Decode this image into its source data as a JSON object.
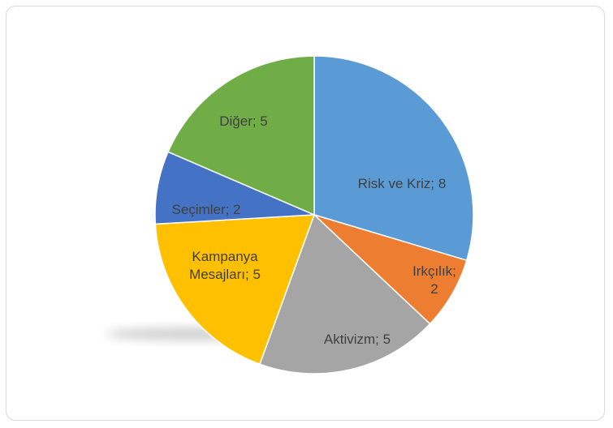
{
  "chart_data": {
    "type": "pie",
    "title": "",
    "legend": "none",
    "slices": [
      {
        "name": "Risk ve Kriz",
        "value": 8,
        "color": "#5b9bd5",
        "label_lines": [
          "Risk ve Kriz; 8"
        ]
      },
      {
        "name": "Irkçılık",
        "value": 2,
        "color": "#ed7d31",
        "label_lines": [
          "Irkçılık;",
          "2"
        ]
      },
      {
        "name": "Aktivizm",
        "value": 5,
        "color": "#a5a5a5",
        "label_lines": [
          "Aktivizm; 5"
        ]
      },
      {
        "name": "Kampanya Mesajları",
        "value": 5,
        "color": "#ffc000",
        "label_lines": [
          "Kampanya",
          "Mesajları; 5"
        ]
      },
      {
        "name": "Seçimler",
        "value": 2,
        "color": "#4472c4",
        "label_lines": [
          "Seçimler; 2"
        ]
      },
      {
        "name": "Diğer",
        "value": 5,
        "color": "#70ad47",
        "label_lines": [
          "Diğer; 5"
        ]
      }
    ]
  }
}
